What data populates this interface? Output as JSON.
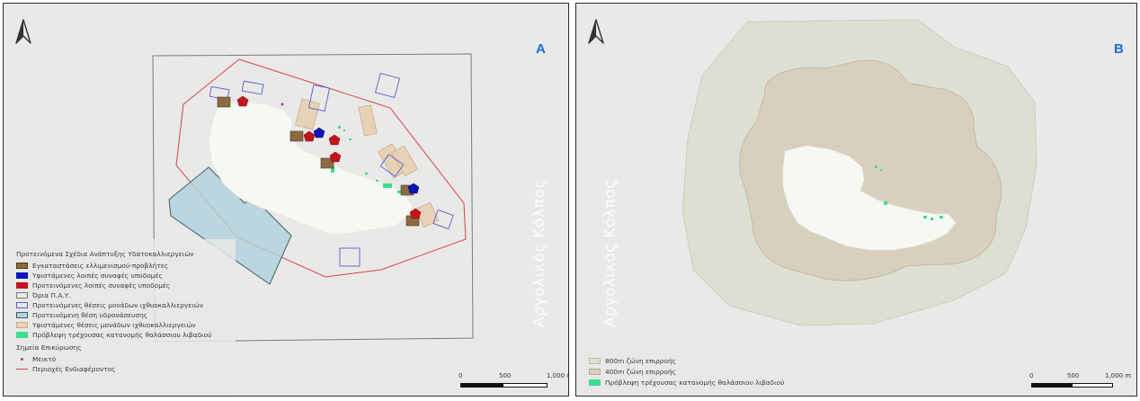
{
  "colors": {
    "panel_bg": "#e9e9e7",
    "island": "#f7f7f4",
    "facility_brown": "#8c6b43",
    "existing_blue": "#0a16b8",
    "proposed_red": "#c4141c",
    "boundary_grey": "#7a7a7a",
    "proposed_units_outline": "#5b5bd6",
    "aquaculture_site": "#b3d2dc",
    "existing_units": "#e8d2b6",
    "seagrass_green": "#3ddc8f",
    "point_purple": "#a53ca5",
    "interest_red": "#d9414f",
    "zone800": "#dedfd3",
    "zone400": "#d9cfbf",
    "panel_letter": "#1a6ed8"
  },
  "panel_a": {
    "letter": "A",
    "north_icon": "north-arrow-icon",
    "gulf_label": "Αργολικός Κόλπος",
    "legend": {
      "title": "Προτεινόμενα Σχέδια Ανάπτυξης Υδατοκαλλιεργειών",
      "items": [
        {
          "label": "Εγκαταστάσεις ελλιμενισμού-προβλήτες",
          "color": "#8c6b43"
        },
        {
          "label": "Υφιστάμενες λοιπές συναφές υποδομές",
          "color": "#0a16b8"
        },
        {
          "label": "Προτεινόμενες λοιπές συναφές υποδομές",
          "color": "#c4141c"
        },
        {
          "label": "Όρια Π.Α.Υ.",
          "color": "#7a7a7a"
        },
        {
          "label": "Προτεινόμενες θέσεις μονάδων ιχθυοκαλλιεργειών",
          "color": "#5b5bd6"
        },
        {
          "label": "Προτεινόμενη θέση υδρονάσευσης",
          "color": "#b3d2dc"
        },
        {
          "label": "Υφιστάμενες θέσεις μονάδων ιχθυοκαλλιεργειών",
          "color": "#e8d2b6"
        },
        {
          "label": "Πρόβλεψη τρέχουσας κατανομής θαλάσσιου λιβαδιού",
          "color": "#3ddc8f"
        }
      ],
      "subtitle": "Σημεία Επικύρωσης",
      "points_label": "Μεικτό",
      "interest_label": "Περιοχές Ενδιαφέροντος"
    },
    "scale": {
      "labels": [
        "0",
        "500",
        "1,000 m"
      ]
    }
  },
  "panel_b": {
    "letter": "B",
    "north_icon": "north-arrow-icon",
    "gulf_label": "Αργολικός Κόλπος",
    "legend": {
      "items": [
        {
          "label": "800m ζώνη επιρροής",
          "color": "#dedfd3"
        },
        {
          "label": "400m ζώνη επιρροής",
          "color": "#d9cfbf"
        },
        {
          "label": "Πρόβλεψη τρέχουσας κατανομής θαλάσσιου λιβαδιού",
          "color": "#3ddc8f"
        }
      ]
    },
    "scale": {
      "labels": [
        "0",
        "500",
        "1,000 m"
      ]
    }
  }
}
